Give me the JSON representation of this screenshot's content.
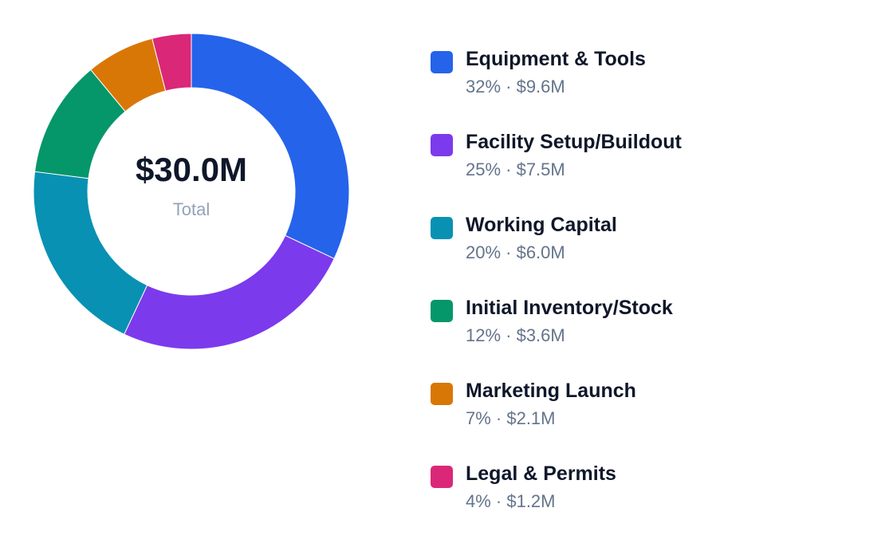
{
  "chart_data": {
    "type": "pie",
    "total_label": "$30.0M",
    "total_caption": "Total",
    "categories": [
      "Equipment & Tools",
      "Facility Setup/Buildout",
      "Working Capital",
      "Initial Inventory/Stock",
      "Marketing Launch",
      "Legal & Permits"
    ],
    "values": [
      9.6,
      7.5,
      6.0,
      3.6,
      2.1,
      1.2
    ],
    "percents": [
      32,
      25,
      20,
      12,
      7,
      4
    ],
    "legend_details": [
      "32% · $9.6M",
      "25% · $7.5M",
      "20% · $6.0M",
      "12% · $3.6M",
      "7% · $2.1M",
      "4% · $1.2M"
    ],
    "colors": [
      "#2563eb",
      "#7c3aed",
      "#0891b2",
      "#059669",
      "#d97706",
      "#db2777"
    ],
    "legend_placement": "right"
  }
}
